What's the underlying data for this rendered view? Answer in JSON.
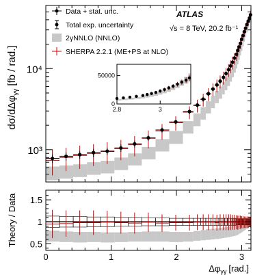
{
  "chart_data": [
    {
      "type": "line",
      "panel": "main",
      "ylabel": "dσ/dΔφ",
      "ylabel_sub": "γγ",
      "ylabel_unit": "[fb / rad.]",
      "yscale": "log",
      "ylim": [
        400,
        60000
      ],
      "xlim": [
        0,
        3.1416
      ],
      "yticks": [
        "10³",
        "10⁴"
      ],
      "experiment": "ATLAS",
      "energy_label": "√s = 8 TeV, 20.2 fb⁻¹",
      "legend": {
        "placement": "top-left",
        "entries": [
          {
            "label": "Data + stat. unc.",
            "marker": "dot-errorbar"
          },
          {
            "label": "Total exp. uncertainty",
            "marker": "dot-bracket"
          },
          {
            "label": "2γNNLO (NNLO)",
            "marker": "grey-box",
            "color": "#c8c8c8"
          },
          {
            "label": "SHERPA 2.2.1 (ME+PS at NLO)",
            "marker": "red-cross",
            "color": "#d00000"
          }
        ]
      },
      "data_x": [
        0.1,
        0.31,
        0.52,
        0.73,
        0.94,
        1.15,
        1.36,
        1.57,
        1.78,
        1.99,
        2.2,
        2.32,
        2.41,
        2.49,
        2.56,
        2.62,
        2.67,
        2.72,
        2.76,
        2.8,
        2.83,
        2.86,
        2.89,
        2.92,
        2.94,
        2.96,
        2.98,
        3.0,
        3.02,
        3.04,
        3.06,
        3.08,
        3.1,
        3.12,
        3.135
      ],
      "data_y": [
        780,
        830,
        870,
        920,
        960,
        1050,
        1180,
        1400,
        1750,
        2200,
        2950,
        3550,
        4200,
        4900,
        5600,
        6300,
        7000,
        7800,
        8700,
        9700,
        10800,
        12000,
        13500,
        15000,
        16800,
        18500,
        20500,
        23000,
        25500,
        28500,
        31500,
        35000,
        38500,
        42000,
        46000
      ],
      "data_stat_rel": [
        0.35,
        0.35,
        0.32,
        0.32,
        0.3,
        0.3,
        0.28,
        0.25,
        0.22,
        0.2,
        0.2,
        0.2,
        0.2,
        0.2,
        0.2,
        0.2,
        0.2,
        0.2,
        0.2,
        0.2,
        0.2,
        0.18,
        0.18,
        0.16,
        0.16,
        0.14,
        0.14,
        0.13,
        0.13,
        0.12,
        0.12,
        0.12,
        0.12,
        0.12,
        0.12
      ],
      "nnlo_bins": [
        {
          "x0": 0.0,
          "x1": 0.21,
          "lo": 420,
          "hi": 620
        },
        {
          "x0": 0.21,
          "x1": 0.42,
          "lo": 440,
          "hi": 640
        },
        {
          "x0": 0.42,
          "x1": 0.63,
          "lo": 460,
          "hi": 660
        },
        {
          "x0": 0.63,
          "x1": 0.84,
          "lo": 490,
          "hi": 700
        },
        {
          "x0": 0.84,
          "x1": 1.05,
          "lo": 510,
          "hi": 730
        },
        {
          "x0": 1.05,
          "x1": 1.26,
          "lo": 560,
          "hi": 800
        },
        {
          "x0": 1.26,
          "x1": 1.47,
          "lo": 640,
          "hi": 900
        },
        {
          "x0": 1.47,
          "x1": 1.68,
          "lo": 760,
          "hi": 1080
        },
        {
          "x0": 1.68,
          "x1": 1.89,
          "lo": 950,
          "hi": 1350
        },
        {
          "x0": 1.89,
          "x1": 2.1,
          "lo": 1180,
          "hi": 1700
        },
        {
          "x0": 2.1,
          "x1": 2.26,
          "lo": 1580,
          "hi": 2250
        },
        {
          "x0": 2.26,
          "x1": 2.37,
          "lo": 1950,
          "hi": 2800
        },
        {
          "x0": 2.37,
          "x1": 2.45,
          "lo": 2350,
          "hi": 3350
        },
        {
          "x0": 2.45,
          "x1": 2.53,
          "lo": 2800,
          "hi": 3950
        },
        {
          "x0": 2.53,
          "x1": 2.59,
          "lo": 3250,
          "hi": 4600
        },
        {
          "x0": 2.59,
          "x1": 2.65,
          "lo": 3750,
          "hi": 5300
        },
        {
          "x0": 2.65,
          "x1": 2.7,
          "lo": 4250,
          "hi": 6000
        },
        {
          "x0": 2.7,
          "x1": 2.74,
          "lo": 4800,
          "hi": 6800
        },
        {
          "x0": 2.74,
          "x1": 2.78,
          "lo": 5400,
          "hi": 7700
        },
        {
          "x0": 2.78,
          "x1": 2.82,
          "lo": 6100,
          "hi": 8700
        },
        {
          "x0": 2.82,
          "x1": 2.85,
          "lo": 6900,
          "hi": 9800
        },
        {
          "x0": 2.85,
          "x1": 2.88,
          "lo": 7800,
          "hi": 11000
        },
        {
          "x0": 2.88,
          "x1": 2.91,
          "lo": 8900,
          "hi": 12500
        },
        {
          "x0": 2.91,
          "x1": 2.93,
          "lo": 10000,
          "hi": 14000
        },
        {
          "x0": 2.93,
          "x1": 2.95,
          "lo": 11300,
          "hi": 15800
        },
        {
          "x0": 2.95,
          "x1": 2.97,
          "lo": 12800,
          "hi": 17800
        },
        {
          "x0": 2.97,
          "x1": 2.99,
          "lo": 14500,
          "hi": 20000
        },
        {
          "x0": 2.99,
          "x1": 3.01,
          "lo": 16500,
          "hi": 22500
        },
        {
          "x0": 3.01,
          "x1": 3.03,
          "lo": 18800,
          "hi": 25500
        },
        {
          "x0": 3.03,
          "x1": 3.05,
          "lo": 21500,
          "hi": 29000
        },
        {
          "x0": 3.05,
          "x1": 3.07,
          "lo": 24500,
          "hi": 33000
        },
        {
          "x0": 3.07,
          "x1": 3.09,
          "lo": 28000,
          "hi": 37500
        },
        {
          "x0": 3.09,
          "x1": 3.11,
          "lo": 32000,
          "hi": 42500
        },
        {
          "x0": 3.11,
          "x1": 3.13,
          "lo": 36000,
          "hi": 48000
        },
        {
          "x0": 3.13,
          "x1": 3.1416,
          "lo": 40000,
          "hi": 54000
        }
      ],
      "sherpa_x": [
        0.1,
        0.31,
        0.52,
        0.73,
        0.94,
        1.15,
        1.36,
        1.57,
        1.78,
        1.99,
        2.2,
        2.32,
        2.41,
        2.49,
        2.56,
        2.62,
        2.67,
        2.72,
        2.76,
        2.8,
        2.83,
        2.86,
        2.89,
        2.92,
        2.94,
        2.96,
        2.98,
        3.0,
        3.02,
        3.04,
        3.06,
        3.08,
        3.1,
        3.12,
        3.135
      ],
      "sherpa_y": [
        740,
        800,
        850,
        900,
        950,
        1030,
        1150,
        1380,
        1700,
        2150,
        2900,
        3500,
        4150,
        4850,
        5550,
        6200,
        6950,
        7750,
        8600,
        9600,
        10700,
        11900,
        13300,
        14800,
        16500,
        18300,
        20300,
        22700,
        25300,
        28300,
        31300,
        34800,
        38300,
        41800,
        45500
      ],
      "sherpa_rel": [
        0.35,
        0.32,
        0.32,
        0.3,
        0.3,
        0.28,
        0.28,
        0.25,
        0.22,
        0.2,
        0.18,
        0.18,
        0.18,
        0.18,
        0.18,
        0.18,
        0.18,
        0.18,
        0.18,
        0.18,
        0.18,
        0.18,
        0.16,
        0.16,
        0.16,
        0.14,
        0.14,
        0.14,
        0.13,
        0.13,
        0.12,
        0.12,
        0.12,
        0.12,
        0.12
      ]
    },
    {
      "type": "line",
      "panel": "inset",
      "xlim": [
        2.8,
        3.1416
      ],
      "ylim": [
        0,
        70000
      ],
      "xticks": [
        "2.8",
        "3"
      ],
      "yticks": [
        "0",
        "50000"
      ],
      "description_values": "zoom of main panel for Δφ > 2.8"
    },
    {
      "type": "line",
      "panel": "ratio",
      "ylabel": "Theory / Data",
      "xlabel": "Δφ",
      "xlabel_sub": "γγ",
      "xlabel_unit": "[rad.]",
      "ylim": [
        0.35,
        1.72
      ],
      "xlim": [
        0,
        3.1416
      ],
      "yticks": [
        "0.5",
        "1",
        "1.5"
      ],
      "xticks": [
        "0",
        "1",
        "2",
        "3"
      ],
      "nnlo_ratio_bins": [
        {
          "x0": 0.0,
          "x1": 0.21,
          "lo": 0.55,
          "hi": 0.8
        },
        {
          "x0": 0.21,
          "x1": 0.42,
          "lo": 0.54,
          "hi": 0.78
        },
        {
          "x0": 0.42,
          "x1": 0.63,
          "lo": 0.53,
          "hi": 0.77
        },
        {
          "x0": 0.63,
          "x1": 0.84,
          "lo": 0.54,
          "hi": 0.77
        },
        {
          "x0": 0.84,
          "x1": 1.05,
          "lo": 0.53,
          "hi": 0.76
        },
        {
          "x0": 1.05,
          "x1": 1.26,
          "lo": 0.54,
          "hi": 0.76
        },
        {
          "x0": 1.26,
          "x1": 1.47,
          "lo": 0.55,
          "hi": 0.77
        },
        {
          "x0": 1.47,
          "x1": 1.68,
          "lo": 0.55,
          "hi": 0.78
        },
        {
          "x0": 1.68,
          "x1": 1.89,
          "lo": 0.55,
          "hi": 0.78
        },
        {
          "x0": 1.89,
          "x1": 2.1,
          "lo": 0.54,
          "hi": 0.77
        },
        {
          "x0": 2.1,
          "x1": 2.26,
          "lo": 0.55,
          "hi": 0.77
        },
        {
          "x0": 2.26,
          "x1": 2.37,
          "lo": 0.57,
          "hi": 0.79
        },
        {
          "x0": 2.37,
          "x1": 2.45,
          "lo": 0.58,
          "hi": 0.81
        },
        {
          "x0": 2.45,
          "x1": 2.53,
          "lo": 0.59,
          "hi": 0.83
        },
        {
          "x0": 2.53,
          "x1": 2.59,
          "lo": 0.6,
          "hi": 0.84
        },
        {
          "x0": 2.59,
          "x1": 2.65,
          "lo": 0.61,
          "hi": 0.85
        },
        {
          "x0": 2.65,
          "x1": 2.7,
          "lo": 0.62,
          "hi": 0.86
        },
        {
          "x0": 2.7,
          "x1": 2.74,
          "lo": 0.63,
          "hi": 0.87
        },
        {
          "x0": 2.74,
          "x1": 2.78,
          "lo": 0.64,
          "hi": 0.88
        },
        {
          "x0": 2.78,
          "x1": 2.82,
          "lo": 0.65,
          "hi": 0.89
        },
        {
          "x0": 2.82,
          "x1": 2.85,
          "lo": 0.66,
          "hi": 0.9
        },
        {
          "x0": 2.85,
          "x1": 2.88,
          "lo": 0.67,
          "hi": 0.91
        },
        {
          "x0": 2.88,
          "x1": 2.91,
          "lo": 0.68,
          "hi": 0.92
        },
        {
          "x0": 2.91,
          "x1": 2.93,
          "lo": 0.69,
          "hi": 0.93
        },
        {
          "x0": 2.93,
          "x1": 2.95,
          "lo": 0.7,
          "hi": 0.94
        },
        {
          "x0": 2.95,
          "x1": 2.97,
          "lo": 0.72,
          "hi": 0.95
        },
        {
          "x0": 2.97,
          "x1": 2.99,
          "lo": 0.74,
          "hi": 0.96
        },
        {
          "x0": 2.99,
          "x1": 3.01,
          "lo": 0.76,
          "hi": 0.97
        },
        {
          "x0": 3.01,
          "x1": 3.03,
          "lo": 0.78,
          "hi": 0.98
        },
        {
          "x0": 3.03,
          "x1": 3.05,
          "lo": 0.8,
          "hi": 0.99
        },
        {
          "x0": 3.05,
          "x1": 3.07,
          "lo": 0.82,
          "hi": 1.0
        },
        {
          "x0": 3.07,
          "x1": 3.09,
          "lo": 0.84,
          "hi": 1.01
        },
        {
          "x0": 3.09,
          "x1": 3.11,
          "lo": 0.86,
          "hi": 1.02
        },
        {
          "x0": 3.11,
          "x1": 3.13,
          "lo": 0.88,
          "hi": 1.04
        },
        {
          "x0": 3.13,
          "x1": 3.1416,
          "lo": 0.9,
          "hi": 1.05
        }
      ],
      "data_ratio_rel": [
        0.13,
        0.12,
        0.12,
        0.11,
        0.11,
        0.1,
        0.1,
        0.09,
        0.09,
        0.08,
        0.08,
        0.08,
        0.08,
        0.08,
        0.08,
        0.08,
        0.08,
        0.08,
        0.08,
        0.08,
        0.08,
        0.08,
        0.08,
        0.07,
        0.07,
        0.07,
        0.07,
        0.07,
        0.07,
        0.07,
        0.07,
        0.07,
        0.07,
        0.07,
        0.07
      ],
      "sherpa_ratio_y": [
        0.95,
        0.96,
        0.98,
        0.98,
        0.99,
        0.98,
        0.97,
        0.99,
        0.97,
        0.98,
        0.98,
        0.99,
        0.99,
        0.99,
        0.99,
        0.98,
        0.99,
        0.99,
        0.99,
        0.99,
        0.99,
        0.99,
        0.99,
        0.99,
        0.98,
        0.99,
        0.99,
        0.99,
        0.99,
        0.99,
        0.99,
        0.99,
        0.99,
        1.0,
        0.99
      ],
      "sherpa_ratio_rel": [
        0.32,
        0.3,
        0.28,
        0.28,
        0.26,
        0.25,
        0.24,
        0.22,
        0.2,
        0.18,
        0.18,
        0.18,
        0.18,
        0.18,
        0.18,
        0.18,
        0.18,
        0.18,
        0.18,
        0.18,
        0.18,
        0.17,
        0.17,
        0.16,
        0.16,
        0.15,
        0.15,
        0.14,
        0.14,
        0.13,
        0.13,
        0.13,
        0.13,
        0.12,
        0.12
      ]
    }
  ]
}
